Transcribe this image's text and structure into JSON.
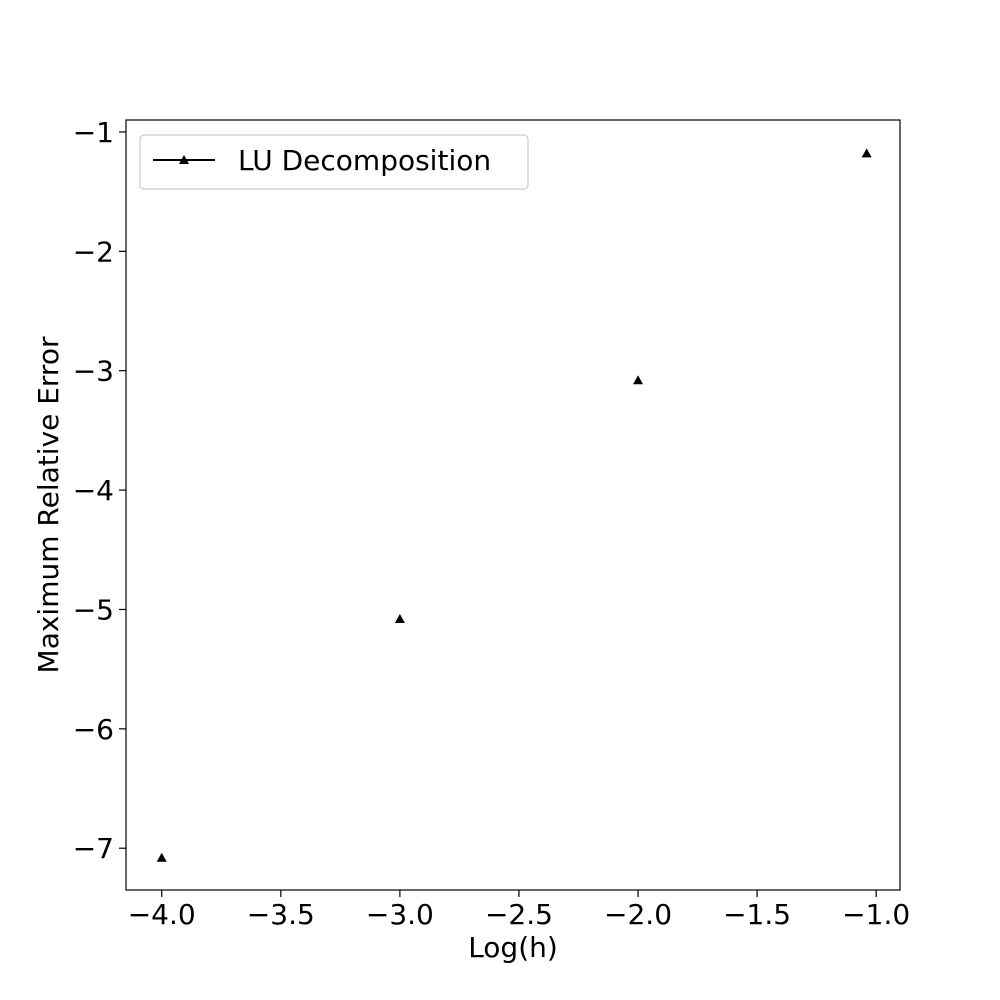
{
  "chart_data": {
    "type": "scatter",
    "title": "",
    "xlabel": "Log(h)",
    "ylabel": "Maximum Relative Error",
    "xlim": [
      -4.15,
      -0.9
    ],
    "ylim": [
      -7.35,
      -0.9
    ],
    "x_ticks": [
      -4.0,
      -3.5,
      -3.0,
      -2.5,
      -2.0,
      -1.5,
      -1.0
    ],
    "x_tick_labels": [
      "−4.0",
      "−3.5",
      "−3.0",
      "−2.5",
      "−2.0",
      "−1.5",
      "−1.0"
    ],
    "y_ticks": [
      -1,
      -2,
      -3,
      -4,
      -5,
      -6,
      -7
    ],
    "y_tick_labels": [
      "−1",
      "−2",
      "−3",
      "−4",
      "−5",
      "−6",
      "−7"
    ],
    "grid": false,
    "legend_position": "top-left",
    "series": [
      {
        "name": "LU Decomposition",
        "marker": "triangle",
        "color": "#000000",
        "x": [
          -4.0,
          -3.0,
          -2.0,
          -1.04
        ],
        "y": [
          -7.08,
          -5.08,
          -3.08,
          -1.18
        ]
      }
    ]
  }
}
